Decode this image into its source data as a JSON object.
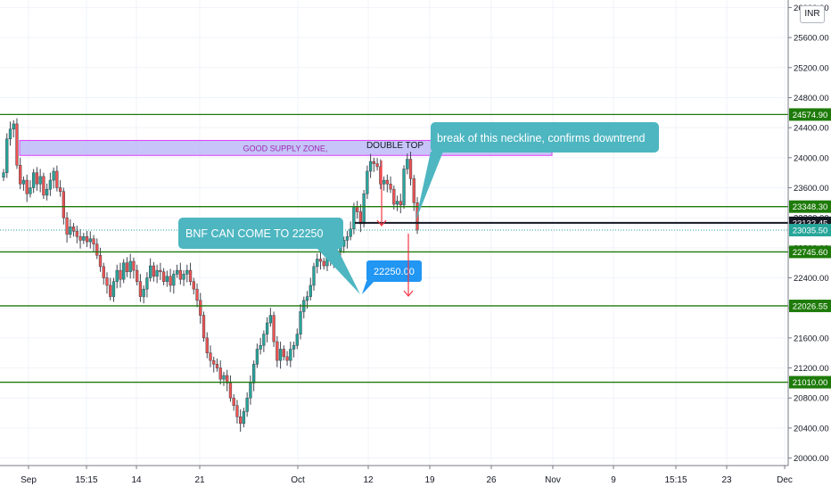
{
  "currency": "INR",
  "colors": {
    "up": "#26a69a",
    "down": "#ef5350",
    "wick": "#434651",
    "level": "#1e7b0a",
    "grid": "#f0f3fa",
    "supply_fill": "#b3b0f7",
    "supply_border": "#e040fb",
    "callout_teal": "#4db6c1",
    "callout_blue": "#2196f3",
    "arrow": "#f23645"
  },
  "chart_data": {
    "type": "candlestick",
    "ylim": [
      19900,
      26100
    ],
    "y_ticks": [
      20000,
      20400,
      20800,
      21200,
      21600,
      22000,
      22400,
      22800,
      23200,
      23600,
      24000,
      24400,
      24800,
      25200,
      25600,
      26000
    ],
    "y_tick_labels": [
      "20000.00",
      "20400.00",
      "20800.00",
      "21200.00",
      "21600.00",
      "22000.00",
      "22400.00",
      "22800.00",
      "23200.00",
      "23600.00",
      "24000.00",
      "24400.00",
      "24800.00",
      "25200.00",
      "25600.00",
      "26000.00"
    ],
    "x_labels": [
      "Sep",
      "15:15",
      "14",
      "21",
      "Oct",
      "12",
      "19",
      "26",
      "Nov",
      "9",
      "15:15",
      "23",
      "Dec"
    ],
    "grid": true,
    "horizontal_levels": [
      {
        "label": "24574.90",
        "value": 24574.9,
        "color": "#1e7b0a"
      },
      {
        "label": "23348.30",
        "value": 23348.3,
        "color": "#1e7b0a"
      },
      {
        "label": "23132.45",
        "value": 23132.45,
        "color": "#131722"
      },
      {
        "label": "23035.50",
        "value": 23035.5,
        "color": "#26a69a"
      },
      {
        "label": "22745.60",
        "value": 22745.6,
        "color": "#1e7b0a"
      },
      {
        "label": "22026.55",
        "value": 22026.55,
        "color": "#1e7b0a"
      },
      {
        "label": "21010.00",
        "value": 21010.0,
        "color": "#1e7b0a"
      }
    ],
    "supply_zone": {
      "label": "GOOD SUPPLY ZONE,",
      "top": 24230,
      "bottom": 24030
    },
    "annotations": {
      "double_top": "DOUBLE TOP",
      "neckline_callout": "break of this neckline, confirms downtrend",
      "target_callout": "BNF CAN COME TO 22250",
      "target_price": "22250.00"
    },
    "series_close": [
      23800,
      24250,
      24380,
      24450,
      23900,
      23650,
      23700,
      23520,
      23600,
      23800,
      23650,
      23750,
      23500,
      23580,
      23700,
      23820,
      23600,
      23550,
      23200,
      22980,
      23080,
      23020,
      22950,
      22900,
      22950,
      22880,
      22920,
      22850,
      22700,
      22550,
      22400,
      22300,
      22150,
      22350,
      22500,
      22380,
      22600,
      22480,
      22620,
      22500,
      22350,
      22150,
      22250,
      22400,
      22560,
      22420,
      22500,
      22480,
      22350,
      22420,
      22300,
      22450,
      22500,
      22380,
      22450,
      22500,
      22350,
      22250,
      22100,
      21900,
      21600,
      21400,
      21300,
      21250,
      21200,
      21050,
      21100,
      21000,
      20800,
      20700,
      20550,
      20460,
      20620,
      20800,
      21000,
      21250,
      21450,
      21500,
      21650,
      21800,
      21900,
      21550,
      21300,
      21450,
      21350,
      21300,
      21450,
      21500,
      21650,
      21950,
      22100,
      22150,
      22300,
      22550,
      22650,
      22620,
      22560,
      22700,
      22650,
      22640,
      22760,
      22820,
      22900,
      22950,
      23050,
      23350,
      23280,
      23120,
      23520,
      23820,
      23950,
      23920,
      23880,
      23650,
      23700,
      23650,
      23580,
      23380,
      23420,
      23370,
      23850,
      23980,
      23720,
      23400,
      23035
    ]
  }
}
